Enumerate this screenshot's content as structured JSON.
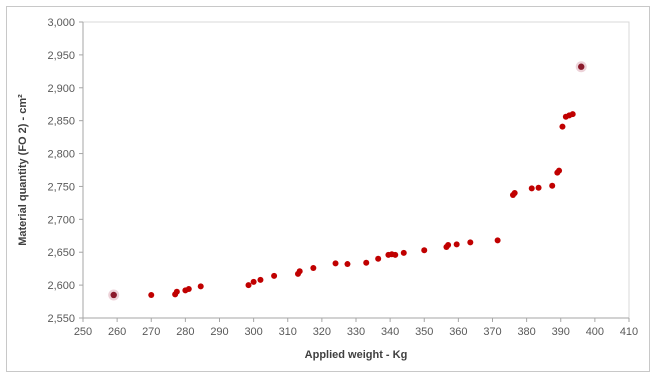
{
  "chart_data": {
    "type": "scatter",
    "xlabel": "Applied weight - Kg",
    "ylabel": "Material quantity (FO 2) - cm²",
    "xlim": [
      250,
      410
    ],
    "ylim": [
      2550,
      3000
    ],
    "x_ticks": [
      "250",
      "260",
      "270",
      "280",
      "290",
      "300",
      "310",
      "320",
      "330",
      "340",
      "350",
      "360",
      "370",
      "380",
      "390",
      "400",
      "410"
    ],
    "y_ticks": [
      "2,550",
      "2,600",
      "2,650",
      "2,700",
      "2,750",
      "2,800",
      "2,850",
      "2,900",
      "2,950",
      "3,000"
    ],
    "grid": false,
    "legend": "none",
    "marker_color": "#c00000",
    "highlight_color": "#8b1a2b",
    "series": [
      {
        "values": [
          {
            "x": 259,
            "y": 2585,
            "highlight": true
          },
          {
            "x": 270,
            "y": 2585
          },
          {
            "x": 277,
            "y": 2586
          },
          {
            "x": 277.5,
            "y": 2590
          },
          {
            "x": 280,
            "y": 2592
          },
          {
            "x": 281,
            "y": 2594
          },
          {
            "x": 284.5,
            "y": 2598
          },
          {
            "x": 298.5,
            "y": 2600
          },
          {
            "x": 300,
            "y": 2605
          },
          {
            "x": 302,
            "y": 2608
          },
          {
            "x": 306,
            "y": 2614
          },
          {
            "x": 313,
            "y": 2617
          },
          {
            "x": 313.5,
            "y": 2621
          },
          {
            "x": 317.5,
            "y": 2626
          },
          {
            "x": 324,
            "y": 2633
          },
          {
            "x": 327.5,
            "y": 2632
          },
          {
            "x": 333,
            "y": 2634
          },
          {
            "x": 336.5,
            "y": 2640
          },
          {
            "x": 339.5,
            "y": 2646
          },
          {
            "x": 340.5,
            "y": 2647
          },
          {
            "x": 341.5,
            "y": 2646
          },
          {
            "x": 344,
            "y": 2649
          },
          {
            "x": 350,
            "y": 2653
          },
          {
            "x": 356.5,
            "y": 2658
          },
          {
            "x": 357,
            "y": 2661
          },
          {
            "x": 359.5,
            "y": 2662
          },
          {
            "x": 363.5,
            "y": 2665
          },
          {
            "x": 371.5,
            "y": 2668
          },
          {
            "x": 376,
            "y": 2737
          },
          {
            "x": 376.5,
            "y": 2740
          },
          {
            "x": 381.5,
            "y": 2747
          },
          {
            "x": 383.5,
            "y": 2748
          },
          {
            "x": 387.5,
            "y": 2751
          },
          {
            "x": 389,
            "y": 2771
          },
          {
            "x": 389.5,
            "y": 2774
          },
          {
            "x": 390.5,
            "y": 2841
          },
          {
            "x": 391.5,
            "y": 2856
          },
          {
            "x": 392.5,
            "y": 2858
          },
          {
            "x": 393.5,
            "y": 2860
          },
          {
            "x": 396,
            "y": 2932,
            "highlight": true
          }
        ]
      }
    ]
  }
}
